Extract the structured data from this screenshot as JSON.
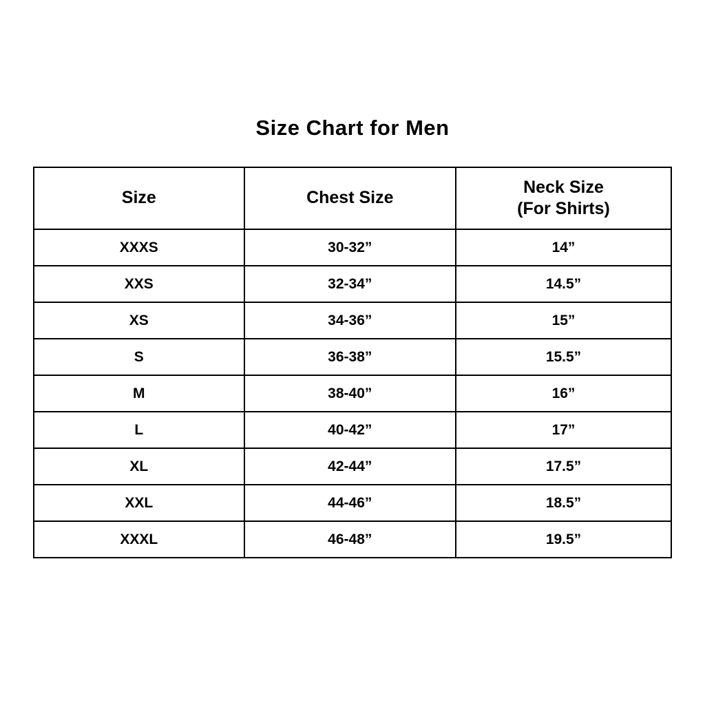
{
  "page": {
    "title": "Size Chart for Men"
  },
  "colors": {
    "background": "#ffffff",
    "text": "#000000",
    "border": "#000000"
  },
  "table": {
    "headers": [
      {
        "label": "Size",
        "sublabel": ""
      },
      {
        "label": "Chest Size",
        "sublabel": ""
      },
      {
        "label": "Neck Size",
        "sublabel": "(For Shirts)"
      }
    ],
    "rows": [
      {
        "size": "XXXS",
        "chest": "30-32”",
        "neck": "14”"
      },
      {
        "size": "XXS",
        "chest": "32-34”",
        "neck": "14.5”"
      },
      {
        "size": "XS",
        "chest": "34-36”",
        "neck": "15”"
      },
      {
        "size": "S",
        "chest": "36-38”",
        "neck": "15.5”"
      },
      {
        "size": "M",
        "chest": "38-40”",
        "neck": "16”"
      },
      {
        "size": "L",
        "chest": "40-42”",
        "neck": "17”"
      },
      {
        "size": "XL",
        "chest": "42-44”",
        "neck": "17.5”"
      },
      {
        "size": "XXL",
        "chest": "44-46”",
        "neck": "18.5”"
      },
      {
        "size": "XXXL",
        "chest": "46-48”",
        "neck": "19.5”"
      }
    ]
  },
  "chart_data": {
    "type": "table",
    "title": "Size Chart for Men",
    "columns": [
      "Size",
      "Chest Size",
      "Neck Size (For Shirts)"
    ],
    "rows": [
      [
        "XXXS",
        "30-32”",
        "14”"
      ],
      [
        "XXS",
        "32-34”",
        "14.5”"
      ],
      [
        "XS",
        "34-36”",
        "15”"
      ],
      [
        "S",
        "36-38”",
        "15.5”"
      ],
      [
        "M",
        "38-40”",
        "16”"
      ],
      [
        "L",
        "40-42”",
        "17”"
      ],
      [
        "XL",
        "42-44”",
        "17.5”"
      ],
      [
        "XXL",
        "44-46”",
        "18.5”"
      ],
      [
        "XXXL",
        "46-48”",
        "19.5”"
      ]
    ]
  }
}
